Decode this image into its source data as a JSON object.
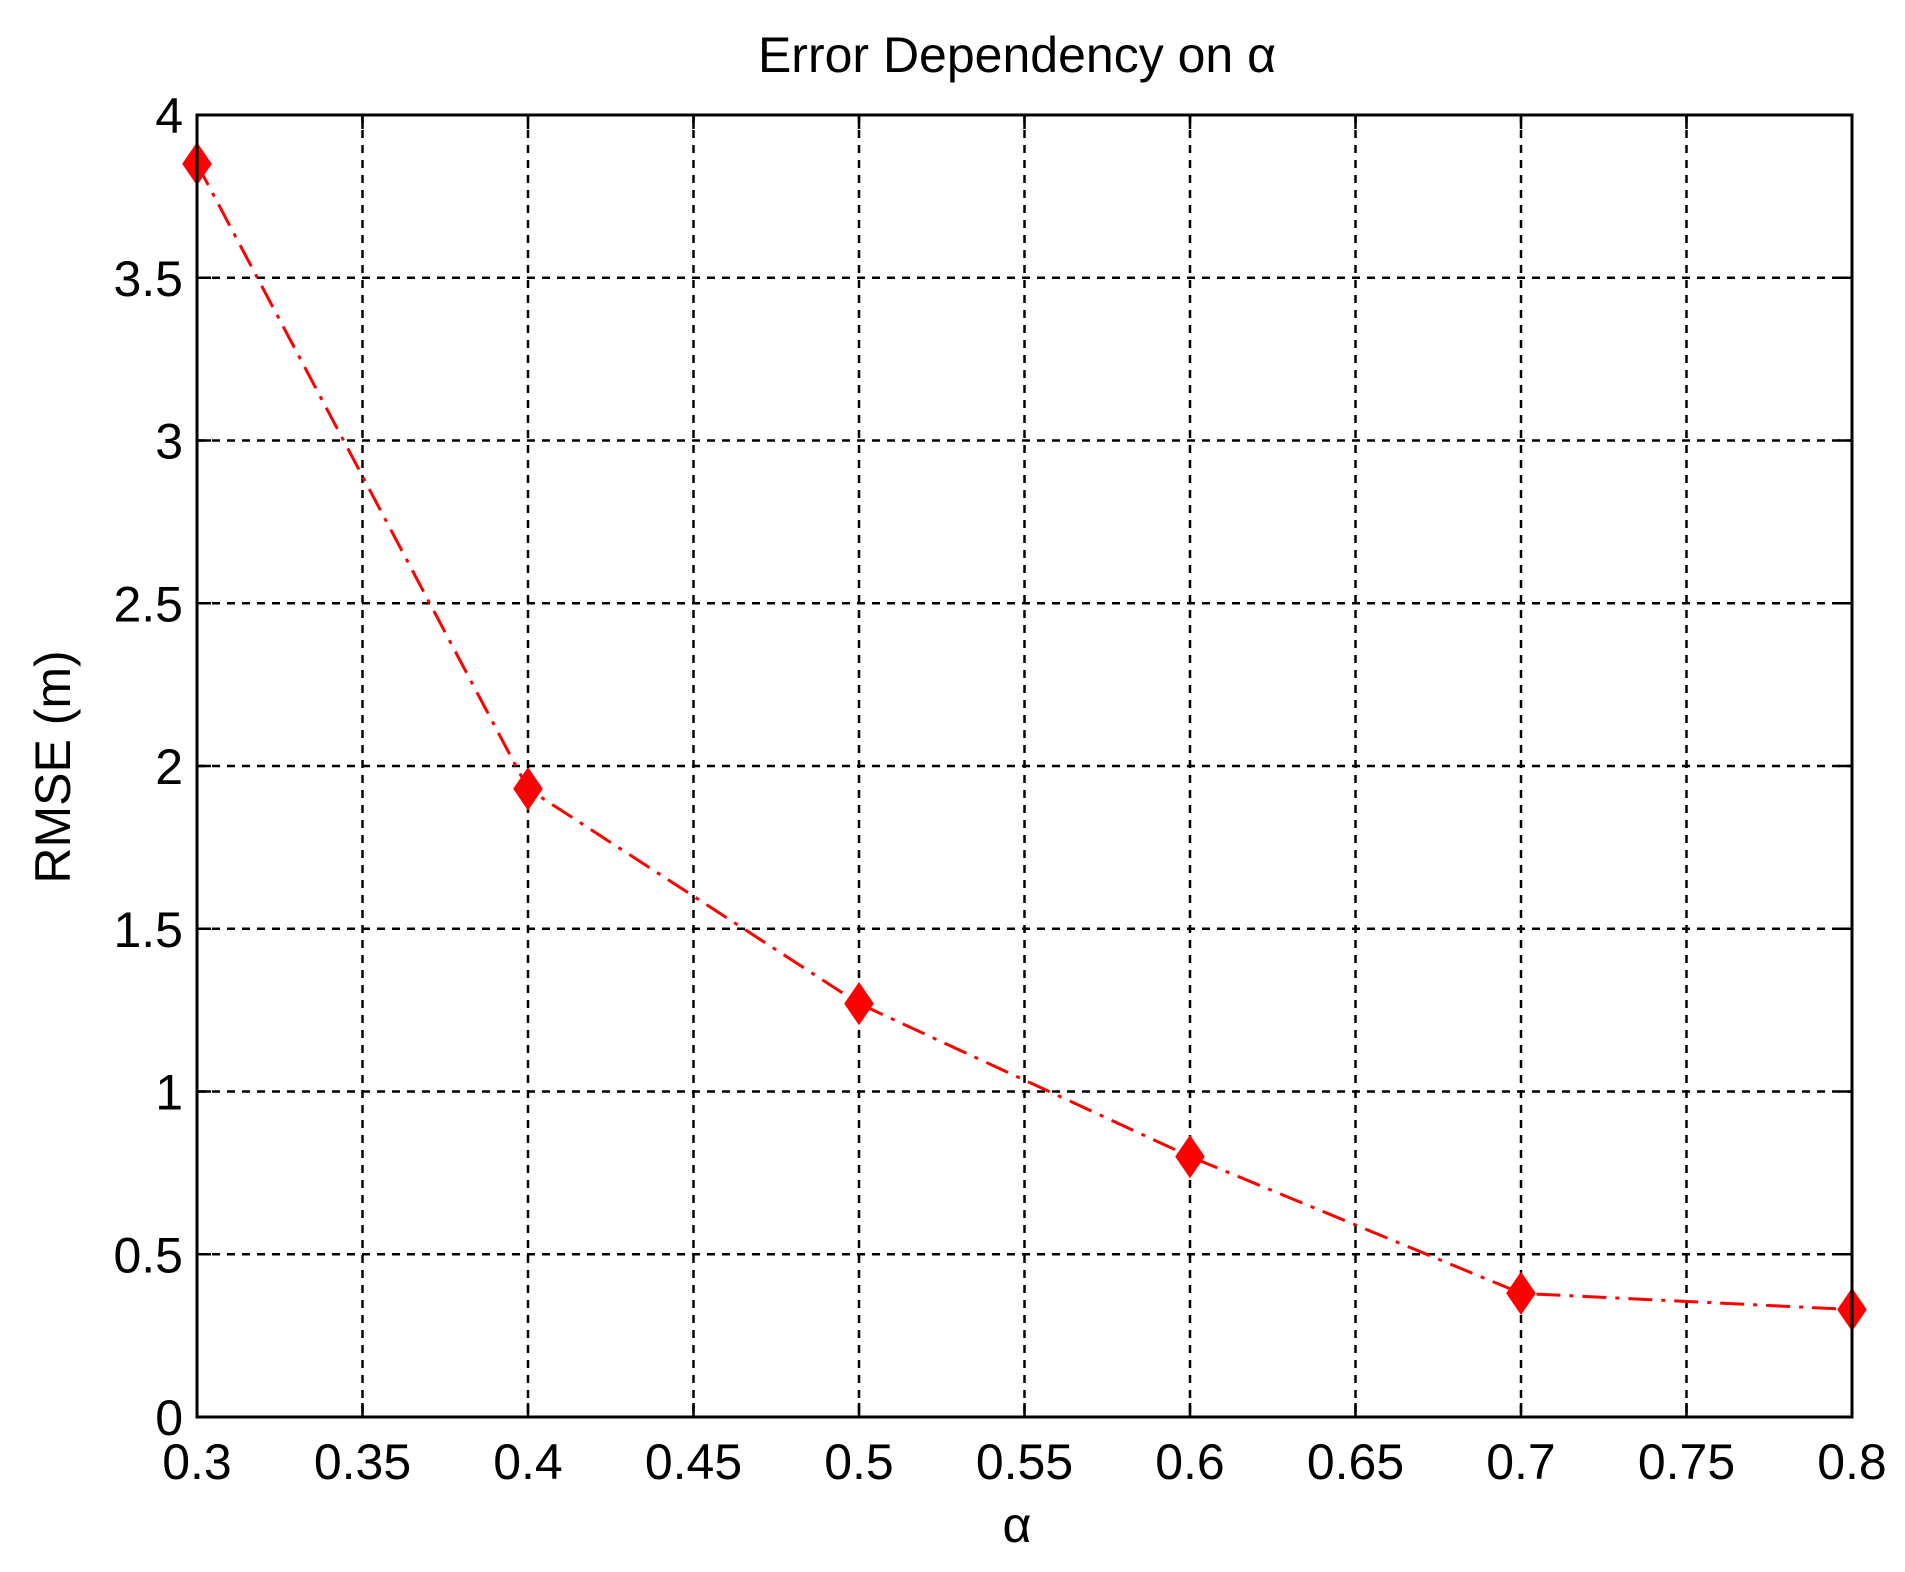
{
  "chart_data": {
    "type": "line",
    "title": "Error Dependency on α",
    "xlabel": "α",
    "ylabel": "RMSE (m)",
    "xlim": [
      0.3,
      0.8
    ],
    "ylim": [
      0,
      4
    ],
    "xticks": [
      0.3,
      0.35,
      0.4,
      0.45,
      0.5,
      0.55,
      0.6,
      0.65,
      0.7,
      0.75,
      0.8
    ],
    "yticks": [
      0,
      0.5,
      1,
      1.5,
      2,
      2.5,
      3,
      3.5,
      4
    ],
    "xtick_labels": [
      "0.3",
      "0.35",
      "0.4",
      "0.45",
      "0.5",
      "0.55",
      "0.6",
      "0.65",
      "0.7",
      "0.75",
      "0.8"
    ],
    "ytick_labels": [
      "0",
      "0.5",
      "1",
      "1.5",
      "2",
      "2.5",
      "3",
      "3.5",
      "4"
    ],
    "grid": true,
    "series": [
      {
        "color": "#ff0000",
        "line_style": "dash-dot",
        "marker": "diamond",
        "x": [
          0.3,
          0.4,
          0.5,
          0.6,
          0.7,
          0.8
        ],
        "y": [
          3.85,
          1.93,
          1.27,
          0.8,
          0.38,
          0.33
        ]
      }
    ]
  }
}
